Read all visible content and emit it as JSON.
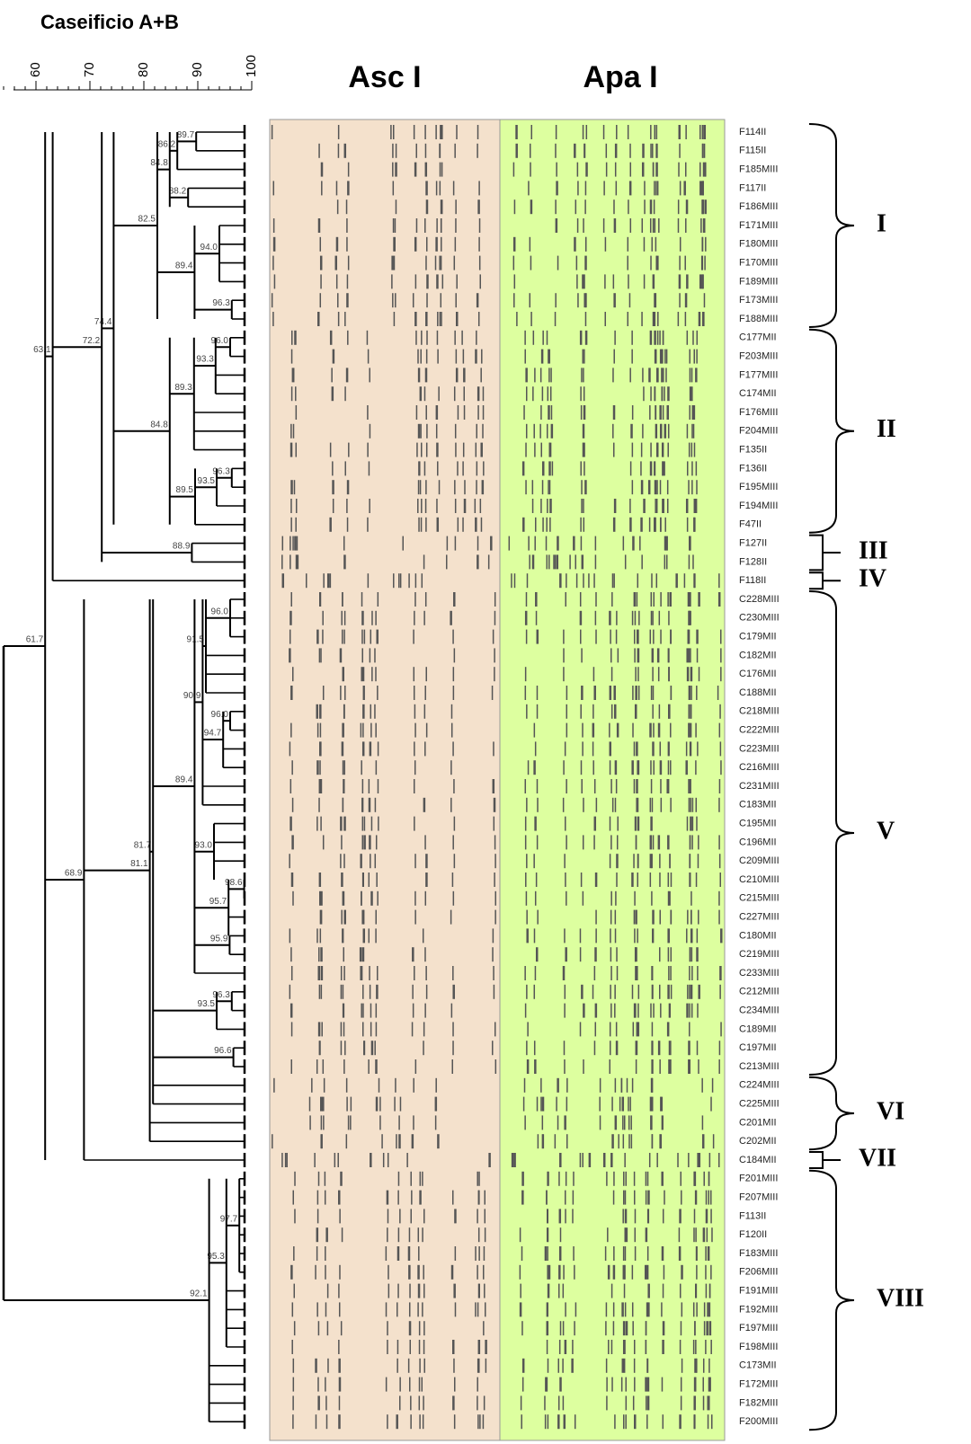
{
  "header": {
    "title": "Caseificio A+B"
  },
  "scale": {
    "ticks": [
      60,
      70,
      80,
      90,
      100
    ]
  },
  "columns": [
    "Asc I",
    "Apa I"
  ],
  "strains": [
    "F114II",
    "F115II",
    "F185MIII",
    "F117II",
    "F186MIII",
    "F171MIII",
    "F180MIII",
    "F170MIII",
    "F189MIII",
    "F173MIII",
    "F188MIII",
    "C177MII",
    "F203MIII",
    "F177MIII",
    "C174MII",
    "F176MIII",
    "F204MIII",
    "F135II",
    "F136II",
    "F195MIII",
    "F194MIII",
    "F47II",
    "F127II",
    "F128II",
    "F118II",
    "C228MIII",
    "C230MIII",
    "C179MII",
    "C182MII",
    "C176MII",
    "C188MII",
    "C218MIII",
    "C222MIII",
    "C223MIII",
    "C216MIII",
    "C231MIII",
    "C183MII",
    "C195MII",
    "C196MII",
    "C209MIII",
    "C210MIII",
    "C215MIII",
    "C227MIII",
    "C180MII",
    "C219MIII",
    "C233MIII",
    "C212MIII",
    "C234MIII",
    "C189MII",
    "C197MII",
    "C213MIII",
    "C224MIII",
    "C225MIII",
    "C201MII",
    "C202MII",
    "C184MII",
    "F201MIII",
    "F207MIII",
    "F113II",
    "F120II",
    "F183MIII",
    "F206MIII",
    "F191MIII",
    "F192MIII",
    "F197MIII",
    "F198MIII",
    "C173MII",
    "F172MIII",
    "F182MIII",
    "F200MIII"
  ],
  "nodes": [
    {
      "label": "89.7",
      "span": [
        0,
        1
      ]
    },
    {
      "label": "86.2",
      "span": [
        0,
        2
      ]
    },
    {
      "label": "88.2",
      "span": [
        3,
        4
      ]
    },
    {
      "label": "84.8",
      "span": [
        0,
        4
      ]
    },
    {
      "label": "94.0",
      "span": [
        5,
        8
      ]
    },
    {
      "label": "96.3",
      "span": [
        9,
        10
      ]
    },
    {
      "label": "89.4",
      "span": [
        5,
        10
      ]
    },
    {
      "label": "82.5",
      "span": [
        0,
        10
      ]
    },
    {
      "label": "96.0",
      "span": [
        11,
        12
      ]
    },
    {
      "label": "93.3",
      "span": [
        11,
        14
      ]
    },
    {
      "label": "89.3",
      "span": [
        11,
        17
      ]
    },
    {
      "label": "96.3",
      "span": [
        18,
        19
      ]
    },
    {
      "label": "93.5",
      "span": [
        18,
        20
      ]
    },
    {
      "label": "89.5",
      "span": [
        18,
        21
      ]
    },
    {
      "label": "84.8",
      "span": [
        11,
        21
      ]
    },
    {
      "label": "74.4",
      "span": [
        0,
        21
      ]
    },
    {
      "label": "88.9",
      "span": [
        22,
        23
      ]
    },
    {
      "label": "72.2",
      "span": [
        0,
        23
      ]
    },
    {
      "label": "63.1",
      "span": [
        0,
        24
      ]
    },
    {
      "label": "96.0",
      "span": [
        25,
        27
      ]
    },
    {
      "label": "91.5",
      "span": [
        25,
        30
      ]
    },
    {
      "label": "96.0",
      "span": [
        31,
        32
      ]
    },
    {
      "label": "94.7",
      "span": [
        31,
        34
      ]
    },
    {
      "label": "90.9",
      "span": [
        25,
        36
      ]
    },
    {
      "label": "93.0",
      "span": [
        37,
        40
      ]
    },
    {
      "label": "98.6",
      "span": [
        40,
        41
      ]
    },
    {
      "label": "95.7",
      "span": [
        40,
        43
      ]
    },
    {
      "label": "95.9",
      "span": [
        43,
        44
      ]
    },
    {
      "label": "89.4",
      "span": [
        25,
        45
      ]
    },
    {
      "label": "96.3",
      "span": [
        46,
        47
      ]
    },
    {
      "label": "93.5",
      "span": [
        46,
        48
      ]
    },
    {
      "label": "96.6",
      "span": [
        49,
        50
      ]
    },
    {
      "label": "81.7",
      "span": [
        25,
        52
      ]
    },
    {
      "label": "81.1",
      "span": [
        25,
        54
      ]
    },
    {
      "label": "68.9",
      "span": [
        25,
        55
      ]
    },
    {
      "label": "61.7",
      "span": [
        0,
        55
      ]
    },
    {
      "label": "97.7",
      "span": [
        56,
        61
      ]
    },
    {
      "label": "95.3",
      "span": [
        56,
        65
      ]
    },
    {
      "label": "92.1",
      "span": [
        56,
        69
      ]
    }
  ],
  "clusters": [
    {
      "label": "I",
      "span": [
        0,
        10
      ]
    },
    {
      "label": "II",
      "span": [
        11,
        21
      ]
    },
    {
      "label": "III",
      "span": [
        22,
        23
      ]
    },
    {
      "label": "IV",
      "span": [
        24,
        24
      ]
    },
    {
      "label": "V",
      "span": [
        25,
        50
      ]
    },
    {
      "label": "VI",
      "span": [
        51,
        54
      ]
    },
    {
      "label": "VII",
      "span": [
        55,
        55
      ]
    },
    {
      "label": "VIII",
      "span": [
        56,
        69
      ]
    }
  ]
}
